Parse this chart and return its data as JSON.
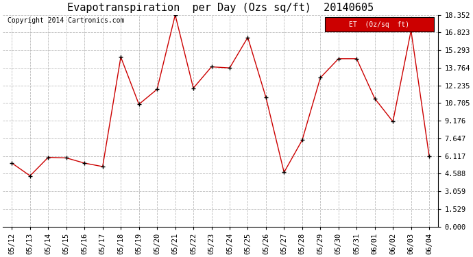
{
  "title": "Evapotranspiration  per Day (Ozs sq/ft)  20140605",
  "copyright": "Copyright 2014 Cartronics.com",
  "legend_label": "ET  (0z/sq  ft)",
  "dates": [
    "05/12",
    "05/13",
    "05/14",
    "05/15",
    "05/16",
    "05/17",
    "05/18",
    "05/19",
    "05/20",
    "05/21",
    "05/22",
    "05/23",
    "05/24",
    "05/25",
    "05/26",
    "05/27",
    "05/28",
    "05/29",
    "05/30",
    "05/31",
    "06/01",
    "06/02",
    "06/03",
    "06/04"
  ],
  "values": [
    5.5,
    4.4,
    6.0,
    5.95,
    5.5,
    5.2,
    14.7,
    10.6,
    11.9,
    18.35,
    12.0,
    13.85,
    13.75,
    16.4,
    11.2,
    4.7,
    7.5,
    12.9,
    14.55,
    14.55,
    11.1,
    9.1,
    17.0,
    6.1
  ],
  "ytick_values": [
    0.0,
    1.529,
    3.059,
    4.588,
    6.117,
    7.647,
    9.176,
    10.705,
    12.235,
    13.764,
    15.293,
    16.823,
    18.352
  ],
  "ymin": 0.0,
  "ymax": 18.352,
  "line_color": "#cc0000",
  "marker_color": "#000000",
  "background_color": "#ffffff",
  "grid_color": "#bbbbbb",
  "legend_bg": "#cc0000",
  "legend_text_color": "#ffffff",
  "title_fontsize": 11,
  "axis_fontsize": 7.5,
  "copyright_fontsize": 7
}
